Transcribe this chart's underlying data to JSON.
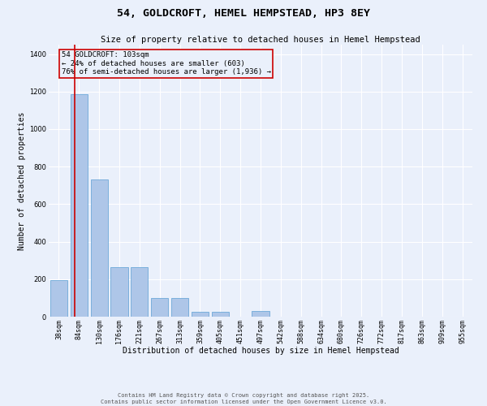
{
  "title": "54, GOLDCROFT, HEMEL HEMPSTEAD, HP3 8EY",
  "subtitle": "Size of property relative to detached houses in Hemel Hempstead",
  "xlabel": "Distribution of detached houses by size in Hemel Hempstead",
  "ylabel": "Number of detached properties",
  "footer_line1": "Contains HM Land Registry data © Crown copyright and database right 2025.",
  "footer_line2": "Contains public sector information licensed under the Open Government Licence v3.0.",
  "bin_labels": [
    "38sqm",
    "84sqm",
    "130sqm",
    "176sqm",
    "221sqm",
    "267sqm",
    "313sqm",
    "359sqm",
    "405sqm",
    "451sqm",
    "497sqm",
    "542sqm",
    "588sqm",
    "634sqm",
    "680sqm",
    "726sqm",
    "772sqm",
    "817sqm",
    "863sqm",
    "909sqm",
    "955sqm"
  ],
  "bar_values": [
    195,
    1185,
    730,
    265,
    265,
    100,
    100,
    25,
    25,
    0,
    30,
    0,
    0,
    0,
    0,
    0,
    0,
    0,
    0,
    0,
    0
  ],
  "bar_color": "#aec6e8",
  "bar_edgecolor": "#5a9fd4",
  "background_color": "#eaf0fb",
  "grid_color": "#ffffff",
  "vline_x": 0.77,
  "vline_color": "#cc0000",
  "annotation_text": "54 GOLDCROFT: 103sqm\n← 24% of detached houses are smaller (603)\n76% of semi-detached houses are larger (1,936) →",
  "annotation_box_color": "#cc0000",
  "ylim": [
    0,
    1450
  ],
  "yticks": [
    0,
    200,
    400,
    600,
    800,
    1000,
    1200,
    1400
  ],
  "title_fontsize": 9.5,
  "subtitle_fontsize": 7.5,
  "xlabel_fontsize": 7,
  "ylabel_fontsize": 7,
  "tick_fontsize": 6,
  "annotation_fontsize": 6.5,
  "footer_fontsize": 5
}
